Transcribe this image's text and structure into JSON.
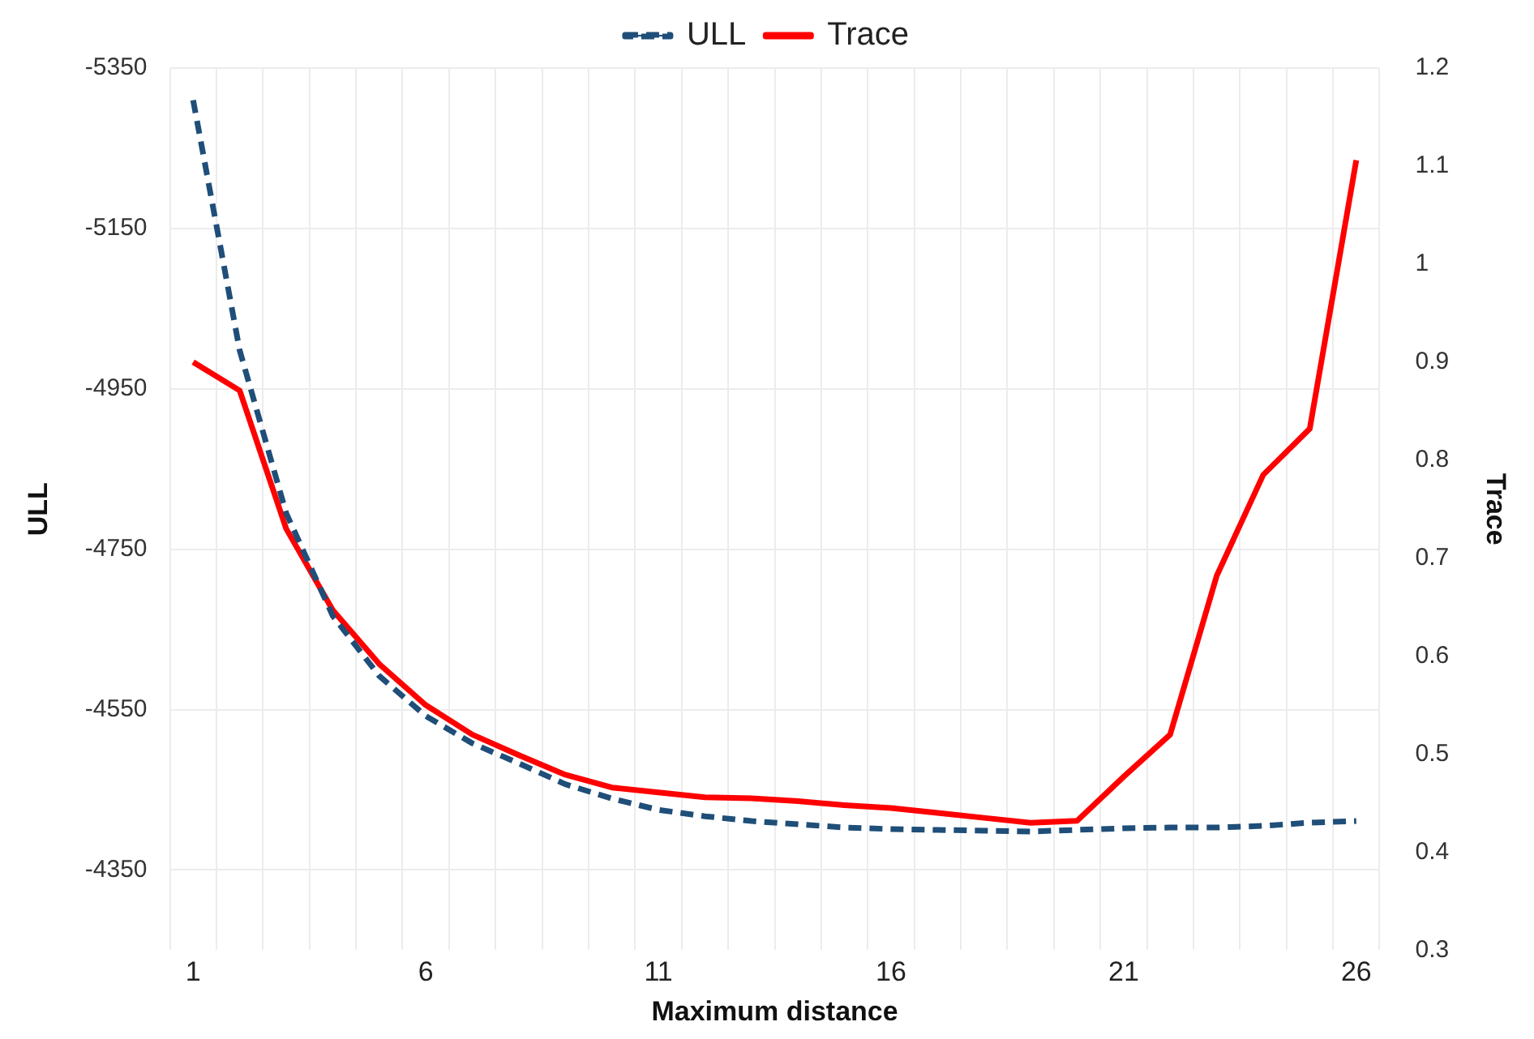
{
  "chart_data": {
    "type": "line",
    "xlabel": "Maximum distance",
    "ylabel": "ULL",
    "y2label": "Trace",
    "categories": [
      "1",
      null,
      null,
      null,
      null,
      "6",
      null,
      null,
      null,
      null,
      "11",
      null,
      null,
      null,
      null,
      "16",
      null,
      null,
      null,
      null,
      "21",
      null,
      null,
      null,
      null,
      "26"
    ],
    "series": [
      {
        "name": "ULL",
        "color": "#1f4e79",
        "line_style": "dashed",
        "values": [
          -5310,
          -4998,
          -4795,
          -4667,
          -4592,
          -4542,
          -4508,
          -4483,
          -4457,
          -4439,
          -4425,
          -4417,
          -4411,
          -4407,
          -4403,
          -4401,
          -4400,
          -4399,
          -4398,
          -4400,
          -4402,
          -4403,
          -4403,
          -4405,
          -4409,
          -4411
        ]
      },
      {
        "name": "Trace",
        "color": "#ff0000",
        "line_style": "solid",
        "axis": "y2",
        "values": [
          0.9,
          0.871,
          0.73,
          0.647,
          0.592,
          0.55,
          0.52,
          0.499,
          0.479,
          0.466,
          0.461,
          0.456,
          0.455,
          0.452,
          0.448,
          0.445,
          0.44,
          0.435,
          0.43,
          0.432,
          0.477,
          0.52,
          0.682,
          0.785,
          0.832,
          1.106
        ]
      }
    ],
    "ylim": [
      -4250,
      -5350
    ],
    "yticks": [
      -5350,
      -5150,
      -4950,
      -4750,
      -4550,
      -4350
    ],
    "y2lim": [
      0.3,
      1.2
    ],
    "y2ticks": [
      0.3,
      0.4,
      0.5,
      0.6,
      0.7,
      0.8,
      0.9,
      1,
      1.1,
      1.2
    ],
    "grid": true,
    "legend": "top",
    "marker": "none"
  }
}
